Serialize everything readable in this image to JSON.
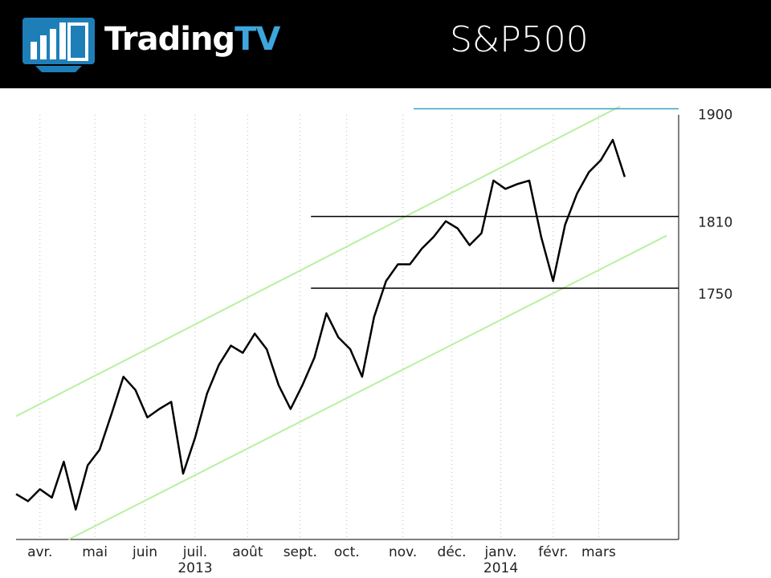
{
  "header": {
    "brand": "Trading",
    "brand_accent": "TV",
    "title": "S&P500"
  },
  "chart_data": {
    "type": "line",
    "series": [
      {
        "name": "S&P500",
        "color": "#000000",
        "values": [
          1578,
          1572,
          1582,
          1575,
          1605,
          1565,
          1602,
          1615,
          1645,
          1676,
          1665,
          1642,
          1649,
          1655,
          1595,
          1625,
          1662,
          1686,
          1702,
          1696,
          1712,
          1699,
          1669,
          1649,
          1669,
          1692,
          1729,
          1709,
          1699,
          1676,
          1726,
          1756,
          1770,
          1770,
          1783,
          1793,
          1806,
          1800,
          1786,
          1796,
          1840,
          1833,
          1837,
          1840,
          1793,
          1756,
          1803,
          1829,
          1847,
          1857,
          1874,
          1843
        ]
      }
    ],
    "xlim": [
      0,
      55.5
    ],
    "ylim": [
      1540,
      1905
    ],
    "xticks": [
      {
        "value": 2,
        "label": "avr."
      },
      {
        "value": 6.6,
        "label": "mai"
      },
      {
        "value": 10.8,
        "label": "juin"
      },
      {
        "value": 15,
        "label": "juil."
      },
      {
        "value": 19.4,
        "label": "août"
      },
      {
        "value": 23.8,
        "label": "sept."
      },
      {
        "value": 27.7,
        "label": "oct."
      },
      {
        "value": 32.4,
        "label": "nov."
      },
      {
        "value": 36.5,
        "label": "déc."
      },
      {
        "value": 40.6,
        "label": "janv."
      },
      {
        "value": 45,
        "label": "févr."
      },
      {
        "value": 48.8,
        "label": "mars"
      }
    ],
    "year_labels": [
      {
        "value": 15,
        "label": "2013"
      },
      {
        "value": 40.6,
        "label": "2014"
      }
    ],
    "levels": [
      {
        "value": 1900,
        "from": 33.3,
        "color": "#3aa0c8"
      },
      {
        "value": 1810,
        "from": 24.7,
        "color": "#000000"
      },
      {
        "value": 1750,
        "from": 24.7,
        "color": "#000000"
      }
    ],
    "trendlines": [
      {
        "x": [
          0,
          50.6
        ],
        "y": [
          1643,
          1902
        ],
        "color": "#b8f0a0"
      },
      {
        "x": [
          4.4,
          54.5
        ],
        "y": [
          1540,
          1794
        ],
        "color": "#b8f0a0"
      }
    ],
    "grid": true
  }
}
